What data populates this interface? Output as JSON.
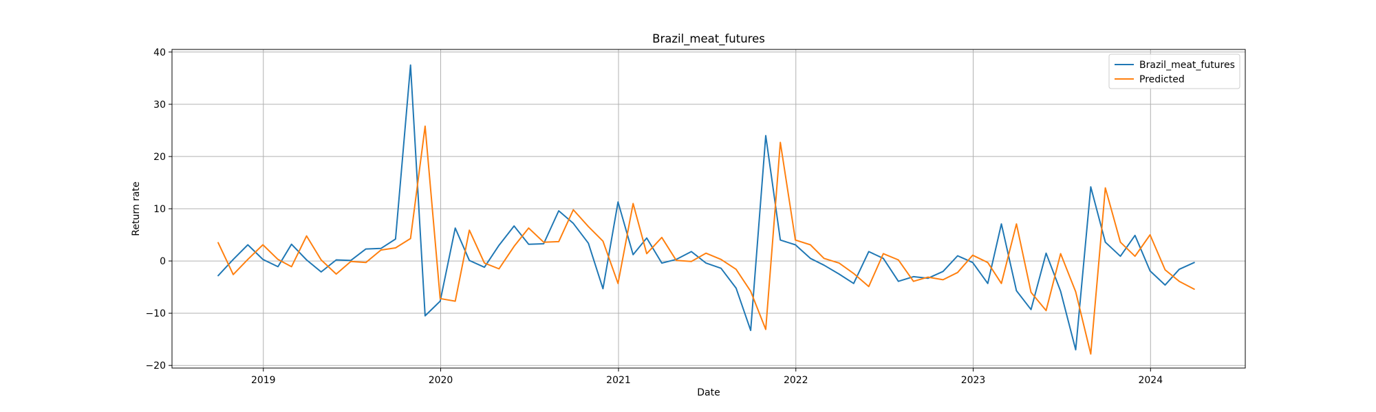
{
  "chart_data": {
    "type": "line",
    "title": "Brazil_meat_futures",
    "xlabel": "Date",
    "ylabel": "Return rate",
    "xlim": [
      "2018-06-27",
      "2024-07-14"
    ],
    "ylim": [
      -20.5,
      40.5
    ],
    "grid": true,
    "legend_position": "top-right",
    "x_ticks": [
      {
        "date": "2019-01-01",
        "label": "2019"
      },
      {
        "date": "2020-01-01",
        "label": "2020"
      },
      {
        "date": "2021-01-01",
        "label": "2021"
      },
      {
        "date": "2022-01-01",
        "label": "2022"
      },
      {
        "date": "2023-01-01",
        "label": "2023"
      },
      {
        "date": "2024-01-01",
        "label": "2024"
      }
    ],
    "y_ticks": [
      {
        "value": -20,
        "label": "−20"
      },
      {
        "value": -10,
        "label": "−10"
      },
      {
        "value": 0,
        "label": "0"
      },
      {
        "value": 10,
        "label": "10"
      },
      {
        "value": 20,
        "label": "20"
      },
      {
        "value": 30,
        "label": "30"
      },
      {
        "value": 40,
        "label": "40"
      }
    ],
    "x": [
      "2018-09-30",
      "2018-10-31",
      "2018-11-30",
      "2018-12-31",
      "2019-01-31",
      "2019-02-28",
      "2019-03-31",
      "2019-04-30",
      "2019-05-31",
      "2019-06-30",
      "2019-07-31",
      "2019-08-31",
      "2019-09-30",
      "2019-10-31",
      "2019-11-30",
      "2019-12-31",
      "2020-01-31",
      "2020-02-29",
      "2020-03-31",
      "2020-04-30",
      "2020-05-31",
      "2020-06-30",
      "2020-07-31",
      "2020-08-31",
      "2020-09-30",
      "2020-10-31",
      "2020-11-30",
      "2020-12-31",
      "2021-01-31",
      "2021-02-28",
      "2021-03-31",
      "2021-04-30",
      "2021-05-31",
      "2021-06-30",
      "2021-07-31",
      "2021-08-31",
      "2021-09-30",
      "2021-10-31",
      "2021-11-30",
      "2021-12-31",
      "2022-01-31",
      "2022-02-28",
      "2022-03-31",
      "2022-04-30",
      "2022-05-31",
      "2022-06-30",
      "2022-07-31",
      "2022-08-31",
      "2022-09-30",
      "2022-10-31",
      "2022-11-30",
      "2022-12-31",
      "2023-01-31",
      "2023-02-28",
      "2023-03-31",
      "2023-04-30",
      "2023-05-31",
      "2023-06-30",
      "2023-07-31",
      "2023-08-31",
      "2023-09-30",
      "2023-10-31",
      "2023-11-30",
      "2023-12-31",
      "2024-01-31",
      "2024-02-29",
      "2024-03-31"
    ],
    "series": [
      {
        "name": "Brazil_meat_futures",
        "color": "#1f77b4",
        "values": [
          -2.8,
          0.3,
          3.1,
          0.3,
          -1.1,
          3.2,
          0.2,
          -2.1,
          0.2,
          0.1,
          2.3,
          2.4,
          4.2,
          37.5,
          -10.5,
          -7.7,
          6.3,
          0.1,
          -1.2,
          3.0,
          6.7,
          3.2,
          3.3,
          9.6,
          7.2,
          3.4,
          -5.3,
          11.3,
          1.2,
          4.4,
          -0.4,
          0.3,
          1.8,
          -0.4,
          -1.4,
          -5.2,
          -13.3,
          24.0,
          4.0,
          3.1,
          0.5,
          -0.8,
          -2.5,
          -4.3,
          1.8,
          0.5,
          -3.9,
          -3.0,
          -3.3,
          -2.0,
          1.0,
          -0.3,
          -4.3,
          7.1,
          -5.7,
          -9.3,
          1.5,
          -5.8,
          -17.0,
          14.2,
          3.6,
          0.9,
          4.9,
          -1.9,
          -4.6,
          -1.6,
          -0.3
        ]
      },
      {
        "name": "Predicted",
        "color": "#ff7f0e",
        "values": [
          3.5,
          -2.6,
          0.3,
          3.1,
          0.3,
          -1.1,
          4.8,
          0.2,
          -2.5,
          -0.1,
          -0.3,
          2.1,
          2.5,
          4.3,
          25.8,
          -7.2,
          -7.7,
          5.9,
          -0.4,
          -1.5,
          2.8,
          6.3,
          3.6,
          3.7,
          9.8,
          6.6,
          3.8,
          -4.3,
          11.0,
          1.4,
          4.5,
          0.1,
          -0.1,
          1.5,
          0.3,
          -1.6,
          -5.8,
          -13.1,
          22.7,
          4.0,
          3.1,
          0.5,
          -0.4,
          -2.4,
          -4.9,
          1.4,
          0.2,
          -3.9,
          -3.1,
          -3.6,
          -2.2,
          1.1,
          -0.3,
          -4.3,
          7.1,
          -6.0,
          -9.5,
          1.4,
          -5.9,
          -17.8,
          14.0,
          3.6,
          0.9,
          5.0,
          -1.7,
          -3.9,
          -5.4
        ]
      }
    ]
  }
}
